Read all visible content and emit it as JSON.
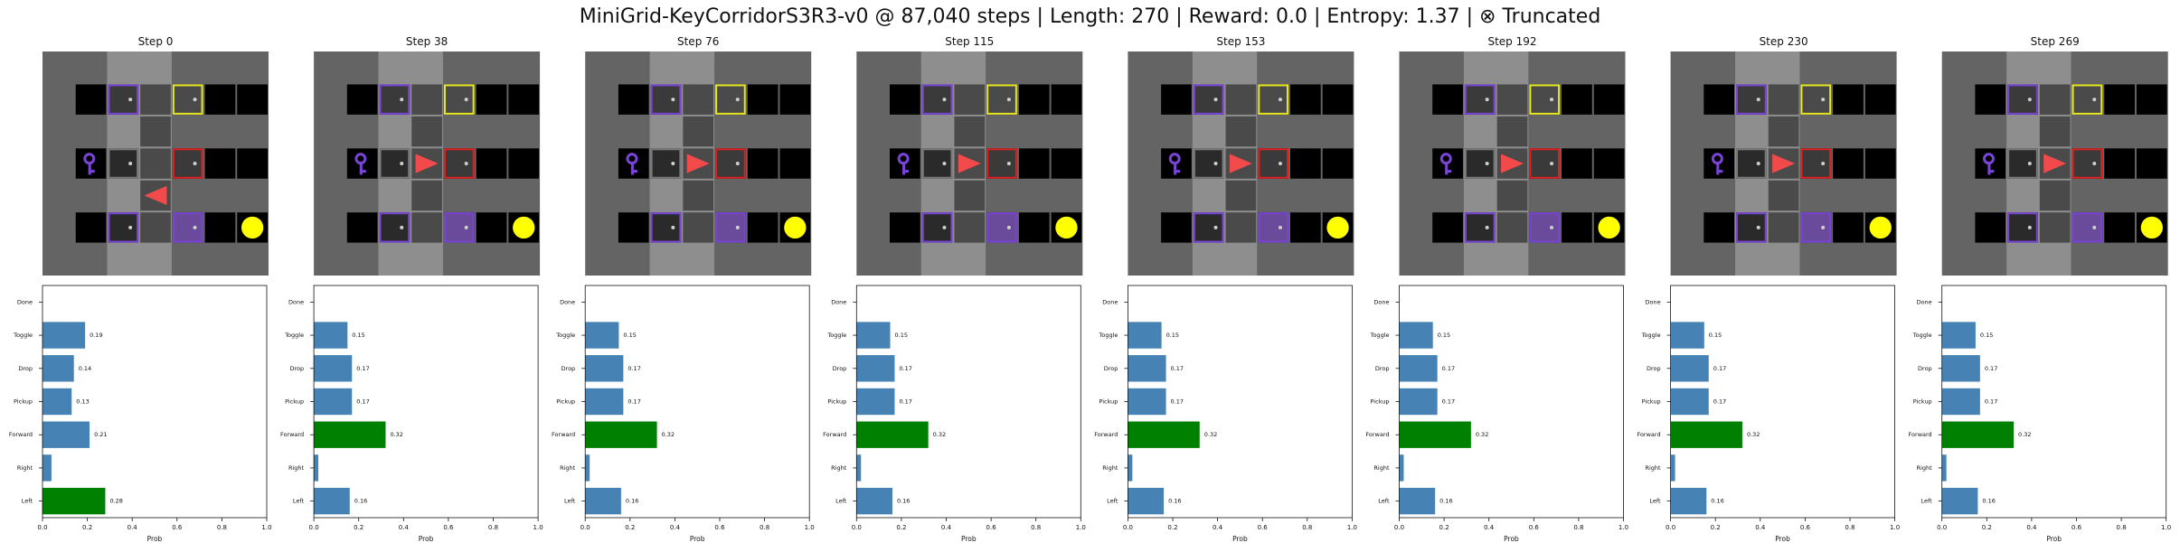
{
  "title": "MiniGrid-KeyCorridorS3R3-v0 @ 87,040 steps | Length: 270 | Reward: 0.0 | Entropy: 1.37 | ⊗ Truncated",
  "colors": {
    "bar": "#4682b4",
    "selected": "#008000",
    "wall": "#646464",
    "corridor": "#8e8e8e",
    "room_floor": "#000000",
    "agent": "#f24a4a",
    "ball": "#ffff00",
    "door_yellow": "#e8e820",
    "door_purple": "#7a45d6",
    "door_red": "#e02020",
    "key": "#7a45d6",
    "door_grey": "#7a7a7a"
  },
  "panels": [
    {
      "label": "Step 0",
      "agent_facing": "left"
    },
    {
      "label": "Step 38",
      "agent_facing": "right"
    },
    {
      "label": "Step 76",
      "agent_facing": "right"
    },
    {
      "label": "Step 115",
      "agent_facing": "right"
    },
    {
      "label": "Step 153",
      "agent_facing": "right"
    },
    {
      "label": "Step 192",
      "agent_facing": "right"
    },
    {
      "label": "Step 230",
      "agent_facing": "right"
    },
    {
      "label": "Step 269",
      "agent_facing": "right"
    }
  ],
  "chart_data": [
    {
      "type": "bar",
      "orientation": "horizontal",
      "title": "Step 0",
      "xlabel": "Prob",
      "categories": [
        "Left",
        "Right",
        "Forward",
        "Pickup",
        "Drop",
        "Toggle",
        "Done"
      ],
      "values": [
        0.28,
        0.04,
        0.21,
        0.13,
        0.14,
        0.19,
        0.0
      ],
      "labels": [
        "0.28",
        "",
        "0.21",
        "0.13",
        "0.14",
        "0.19",
        ""
      ],
      "selected": "Left",
      "xlim": [
        0,
        1
      ],
      "xticks": [
        "0.0",
        "0.2",
        "0.4",
        "0.6",
        "0.8",
        "1.0"
      ]
    },
    {
      "type": "bar",
      "orientation": "horizontal",
      "title": "Step 38",
      "xlabel": "Prob",
      "categories": [
        "Left",
        "Right",
        "Forward",
        "Pickup",
        "Drop",
        "Toggle",
        "Done"
      ],
      "values": [
        0.16,
        0.02,
        0.32,
        0.17,
        0.17,
        0.15,
        0.0
      ],
      "labels": [
        "0.16",
        "",
        "0.32",
        "0.17",
        "0.17",
        "0.15",
        ""
      ],
      "selected": "Forward",
      "xlim": [
        0,
        1
      ],
      "xticks": [
        "0.0",
        "0.2",
        "0.4",
        "0.6",
        "0.8",
        "1.0"
      ]
    },
    {
      "type": "bar",
      "orientation": "horizontal",
      "title": "Step 76",
      "xlabel": "Prob",
      "categories": [
        "Left",
        "Right",
        "Forward",
        "Pickup",
        "Drop",
        "Toggle",
        "Done"
      ],
      "values": [
        0.16,
        0.02,
        0.32,
        0.17,
        0.17,
        0.15,
        0.0
      ],
      "labels": [
        "0.16",
        "",
        "0.32",
        "0.17",
        "0.17",
        "0.15",
        ""
      ],
      "selected": "Forward",
      "xlim": [
        0,
        1
      ],
      "xticks": [
        "0.0",
        "0.2",
        "0.4",
        "0.6",
        "0.8",
        "1.0"
      ]
    },
    {
      "type": "bar",
      "orientation": "horizontal",
      "title": "Step 115",
      "xlabel": "Prob",
      "categories": [
        "Left",
        "Right",
        "Forward",
        "Pickup",
        "Drop",
        "Toggle",
        "Done"
      ],
      "values": [
        0.16,
        0.02,
        0.32,
        0.17,
        0.17,
        0.15,
        0.0
      ],
      "labels": [
        "0.16",
        "",
        "0.32",
        "0.17",
        "0.17",
        "0.15",
        ""
      ],
      "selected": "Forward",
      "xlim": [
        0,
        1
      ],
      "xticks": [
        "0.0",
        "0.2",
        "0.4",
        "0.6",
        "0.8",
        "1.0"
      ]
    },
    {
      "type": "bar",
      "orientation": "horizontal",
      "title": "Step 153",
      "xlabel": "Prob",
      "categories": [
        "Left",
        "Right",
        "Forward",
        "Pickup",
        "Drop",
        "Toggle",
        "Done"
      ],
      "values": [
        0.16,
        0.02,
        0.32,
        0.17,
        0.17,
        0.15,
        0.0
      ],
      "labels": [
        "0.16",
        "",
        "0.32",
        "0.17",
        "0.17",
        "0.15",
        ""
      ],
      "selected": "Forward",
      "xlim": [
        0,
        1
      ],
      "xticks": [
        "0.0",
        "0.2",
        "0.4",
        "0.6",
        "0.8",
        "1.0"
      ]
    },
    {
      "type": "bar",
      "orientation": "horizontal",
      "title": "Step 192",
      "xlabel": "Prob",
      "categories": [
        "Left",
        "Right",
        "Forward",
        "Pickup",
        "Drop",
        "Toggle",
        "Done"
      ],
      "values": [
        0.16,
        0.02,
        0.32,
        0.17,
        0.17,
        0.15,
        0.0
      ],
      "labels": [
        "0.16",
        "",
        "0.32",
        "0.17",
        "0.17",
        "0.15",
        ""
      ],
      "selected": "Forward",
      "xlim": [
        0,
        1
      ],
      "xticks": [
        "0.0",
        "0.2",
        "0.4",
        "0.6",
        "0.8",
        "1.0"
      ]
    },
    {
      "type": "bar",
      "orientation": "horizontal",
      "title": "Step 230",
      "xlabel": "Prob",
      "categories": [
        "Left",
        "Right",
        "Forward",
        "Pickup",
        "Drop",
        "Toggle",
        "Done"
      ],
      "values": [
        0.16,
        0.02,
        0.32,
        0.17,
        0.17,
        0.15,
        0.0
      ],
      "labels": [
        "0.16",
        "",
        "0.32",
        "0.17",
        "0.17",
        "0.15",
        ""
      ],
      "selected": "Forward",
      "xlim": [
        0,
        1
      ],
      "xticks": [
        "0.0",
        "0.2",
        "0.4",
        "0.6",
        "0.8",
        "1.0"
      ]
    },
    {
      "type": "bar",
      "orientation": "horizontal",
      "title": "Step 269",
      "xlabel": "Prob",
      "categories": [
        "Left",
        "Right",
        "Forward",
        "Pickup",
        "Drop",
        "Toggle",
        "Done"
      ],
      "values": [
        0.16,
        0.02,
        0.32,
        0.17,
        0.17,
        0.15,
        0.0
      ],
      "labels": [
        "0.16",
        "",
        "0.32",
        "0.17",
        "0.17",
        "0.15",
        ""
      ],
      "selected": "Forward",
      "xlim": [
        0,
        1
      ],
      "xticks": [
        "0.0",
        "0.2",
        "0.4",
        "0.6",
        "0.8",
        "1.0"
      ]
    }
  ]
}
